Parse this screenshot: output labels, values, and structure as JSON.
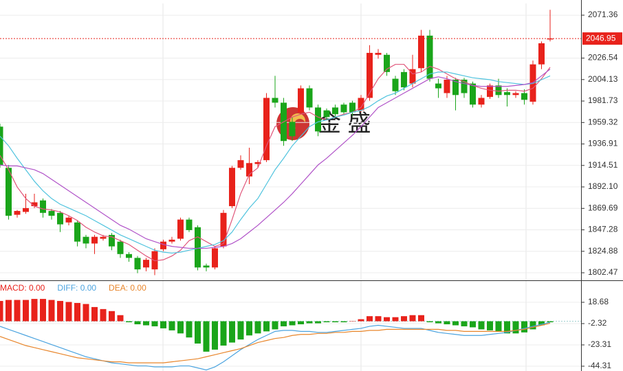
{
  "chart_data": [
    {
      "type": "candlestick",
      "series": {
        "open": [
          1955,
          1912,
          1863,
          1866,
          1872,
          1878,
          1867,
          1865,
          1855,
          1855,
          1840,
          1833,
          1838,
          1842,
          1835,
          1822,
          1818,
          1808,
          1806,
          1827,
          1835,
          1838,
          1858,
          1850,
          1810,
          1808,
          1830,
          1872,
          1912,
          1903,
          1916,
          1920,
          1985,
          1980,
          1960,
          1970,
          1995,
          1975,
          1972,
          1975,
          1978,
          1980,
          1972,
          1985,
          2030,
          2030,
          2005,
          2012,
          2000,
          2016,
          2050,
          2000,
          1990,
          2004,
          2004,
          2000,
          1978,
          1986,
          1998,
          1991,
          1988,
          1990,
          1981,
          2020,
          2046
        ],
        "high": [
          1958,
          1915,
          1868,
          1885,
          1885,
          1880,
          1869,
          1867,
          1862,
          1857,
          1842,
          1842,
          1842,
          1844,
          1837,
          1824,
          1820,
          1818,
          1828,
          1837,
          1840,
          1860,
          1860,
          1852,
          1812,
          1830,
          1868,
          1914,
          1925,
          1933,
          1920,
          1990,
          2008,
          1985,
          1965,
          1998,
          1998,
          1978,
          1974,
          1978,
          1980,
          1982,
          1988,
          2040,
          2036,
          2032,
          2008,
          2015,
          2030,
          2056,
          2056,
          2005,
          2008,
          2006,
          2006,
          2002,
          1988,
          2000,
          2005,
          1995,
          1992,
          1994,
          2024,
          2044,
          2077
        ],
        "low": [
          1912,
          1858,
          1860,
          1864,
          1870,
          1860,
          1858,
          1845,
          1852,
          1830,
          1828,
          1822,
          1836,
          1826,
          1818,
          1814,
          1802,
          1804,
          1800,
          1825,
          1833,
          1836,
          1845,
          1805,
          1804,
          1806,
          1828,
          1870,
          1910,
          1895,
          1912,
          1918,
          1975,
          1935,
          1940,
          1968,
          1972,
          1945,
          1962,
          1965,
          1968,
          1966,
          1970,
          1982,
          2026,
          2008,
          1988,
          1993,
          1996,
          2012,
          2002,
          1985,
          1985,
          1972,
          1985,
          1975,
          1975,
          1984,
          1985,
          1976,
          1985,
          1978,
          1978,
          2015,
          2044
        ],
        "close": [
          1915,
          1862,
          1867,
          1870,
          1876,
          1865,
          1862,
          1853,
          1860,
          1835,
          1833,
          1840,
          1840,
          1830,
          1822,
          1818,
          1806,
          1816,
          1825,
          1835,
          1837,
          1858,
          1847,
          1808,
          1808,
          1828,
          1865,
          1912,
          1920,
          1917,
          1918,
          1985,
          1980,
          1940,
          1945,
          1995,
          1975,
          1950,
          1965,
          1968,
          1970,
          1970,
          1985,
          2032,
          2032,
          2012,
          1992,
          1996,
          2015,
          2050,
          2005,
          1995,
          2004,
          1988,
          1990,
          1978,
          1985,
          1998,
          1988,
          1988,
          1990,
          1983,
          2020,
          2042,
          2047
        ]
      },
      "up_color": "#e8221b",
      "down_color": "#1aa51a",
      "lines": [
        {
          "color": "#e0557a",
          "values": [
            1925,
            1910,
            1892,
            1880,
            1872,
            1869,
            1868,
            1866,
            1862,
            1857,
            1850,
            1845,
            1841,
            1840,
            1836,
            1832,
            1826,
            1820,
            1815,
            1816,
            1820,
            1826,
            1836,
            1840,
            1835,
            1830,
            1833,
            1858,
            1885,
            1905,
            1912,
            1935,
            1955,
            1960,
            1965,
            1968,
            1970,
            1965,
            1962,
            1965,
            1968,
            1970,
            1975,
            1990,
            2005,
            2015,
            2020,
            2020,
            2010,
            2012,
            2018,
            2015,
            2010,
            2005,
            2002,
            1998,
            1995,
            1993,
            1992,
            1993,
            1993,
            1992,
            1995,
            2005,
            2017
          ]
        },
        {
          "color": "#4fc3de",
          "values": [
            1945,
            1935,
            1922,
            1910,
            1898,
            1888,
            1880,
            1874,
            1870,
            1866,
            1862,
            1857,
            1852,
            1847,
            1842,
            1838,
            1834,
            1830,
            1826,
            1824,
            1823,
            1824,
            1826,
            1828,
            1830,
            1832,
            1836,
            1845,
            1858,
            1870,
            1880,
            1895,
            1910,
            1922,
            1935,
            1945,
            1955,
            1960,
            1962,
            1965,
            1967,
            1970,
            1972,
            1976,
            1982,
            1987,
            1990,
            1995,
            2000,
            2005,
            2010,
            2012,
            2012,
            2010,
            2008,
            2006,
            2005,
            2004,
            2002,
            2001,
            2000,
            1999,
            2000,
            2004,
            2008
          ]
        },
        {
          "color": "#b052c8",
          "values": [
            1915,
            1914,
            1914,
            1912,
            1910,
            1906,
            1900,
            1894,
            1888,
            1882,
            1876,
            1870,
            1864,
            1858,
            1852,
            1848,
            1843,
            1838,
            1835,
            1832,
            1830,
            1829,
            1828,
            1828,
            1828,
            1829,
            1830,
            1833,
            1838,
            1845,
            1852,
            1860,
            1868,
            1876,
            1885,
            1895,
            1905,
            1915,
            1922,
            1930,
            1938,
            1946,
            1955,
            1965,
            1975,
            1980,
            1985,
            1990,
            1995,
            2000,
            2005,
            2007,
            2005,
            2002,
            2000,
            1998,
            1997,
            1997,
            1997,
            1997,
            1998,
            1999,
            2001,
            2008,
            2015
          ]
        }
      ],
      "ylim": [
        1794.6,
        2083.6
      ],
      "yticks": [
        1802.47,
        1824.88,
        1847.28,
        1869.69,
        {
          "value": 1892.1,
          "label": "1892.10"
        },
        1914.51,
        1936.91,
        1959.32,
        1981.73,
        2004.13,
        2026.54,
        2071.36
      ],
      "last_price": 2046.95,
      "grid": true,
      "watermark": "金 盛"
    },
    {
      "type": "macd",
      "up_color": "#e8221b",
      "down_color": "#1aa51a",
      "series": [
        {
          "name": "MACD: 0.00",
          "color": "#e8221b",
          "values": [
            20,
            21,
            21,
            21,
            22,
            22,
            21,
            20,
            19,
            18,
            17,
            14,
            12,
            10,
            6,
            -1,
            -3,
            -4,
            -5,
            -7,
            -9,
            -12,
            -16,
            -22,
            -30,
            -28,
            -24,
            -21,
            -18,
            -14,
            -12,
            -10,
            -8,
            -5,
            -4,
            -3,
            -2,
            -2,
            -1,
            -1,
            -1,
            0,
            2,
            5,
            5,
            4,
            4,
            5,
            6,
            6,
            -1,
            -2,
            -3,
            -4,
            -5,
            -6,
            -8,
            -9,
            -10,
            -12,
            -12,
            -11,
            -8,
            -4,
            -1
          ]
        },
        {
          "name": "DIFF: 0.00",
          "color": "#4aa3df",
          "values": [
            -5,
            -8,
            -11,
            -14,
            -17,
            -20,
            -23,
            -26,
            -29,
            -32,
            -35,
            -37,
            -39,
            -41,
            -42,
            -43,
            -44,
            -44,
            -45,
            -45,
            -45,
            -44,
            -44,
            -46,
            -48,
            -45,
            -40,
            -34,
            -28,
            -23,
            -18,
            -14,
            -10,
            -9,
            -9,
            -10,
            -10,
            -11,
            -11,
            -10,
            -9,
            -8,
            -7,
            -5,
            -4,
            -5,
            -6,
            -7,
            -7,
            -7,
            -9,
            -11,
            -12,
            -13,
            -14,
            -14,
            -14,
            -13,
            -12,
            -11,
            -9,
            -7,
            -5,
            -3,
            -1
          ]
        },
        {
          "name": "DEA: 0.00",
          "color": "#e8852a",
          "values": [
            -15,
            -18,
            -21,
            -24,
            -26,
            -28,
            -30,
            -32,
            -34,
            -36,
            -37,
            -38,
            -39,
            -40,
            -40,
            -41,
            -41,
            -41,
            -41,
            -41,
            -40,
            -39,
            -38,
            -37,
            -35,
            -33,
            -31,
            -29,
            -27,
            -24,
            -21,
            -19,
            -17,
            -16,
            -14,
            -13,
            -13,
            -12,
            -12,
            -11,
            -11,
            -10,
            -10,
            -9,
            -9,
            -8,
            -8,
            -8,
            -8,
            -8,
            -8,
            -8,
            -9,
            -9,
            -10,
            -10,
            -10,
            -10,
            -10,
            -10,
            -9,
            -8,
            -6,
            -4,
            -2
          ]
        }
      ],
      "ylim": [
        -49.05,
        40.35
      ],
      "yticks": [
        18.68,
        -2.32,
        -23.31,
        -44.31
      ]
    }
  ]
}
